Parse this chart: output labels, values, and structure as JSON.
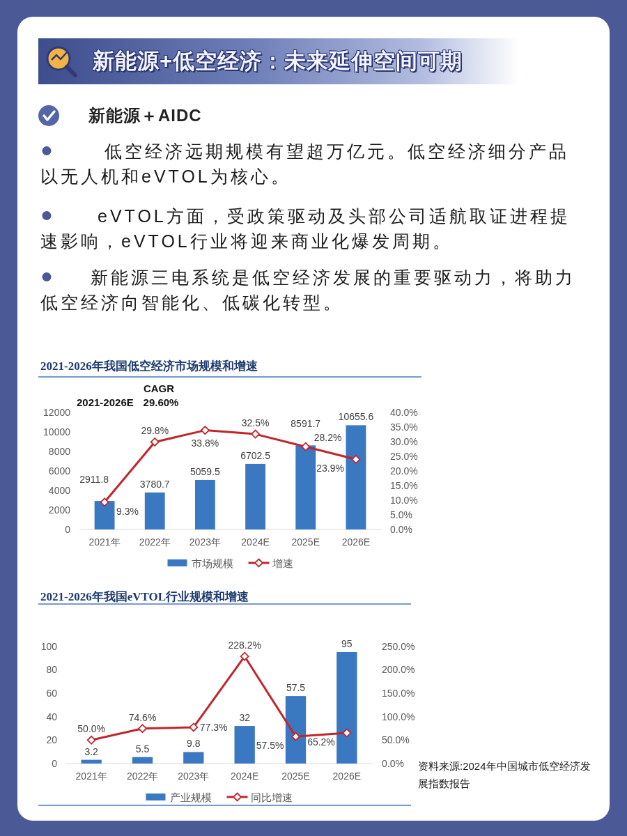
{
  "chart_data": [
    {
      "type": "other",
      "title": "新能源+低空经济：未来延伸空间可期",
      "subtitle": "新能源＋AIDC",
      "annotations": [
        "低空经济远期规模有望超万亿元。低空经济细分产品以无人机和eVTOL为核心。",
        "eVTOL方面，受政策驱动及头部公司适航取证进程提速影响，eVTOL行业将迎来商业化爆发周期。",
        "新能源三电系统是低空经济发展的重要驱动力，将助力低空经济向智能化、低碳化转型。"
      ]
    },
    {
      "type": "bar",
      "title": "2021-2026年我国低空经济市场规模和增速",
      "categories": [
        "2021年",
        "2022年",
        "2023年",
        "2024E",
        "2025E",
        "2026E"
      ],
      "series": [
        {
          "name": "市场规模",
          "type": "bar",
          "color": "#3b78c2",
          "values": [
            2911.8,
            3780.7,
            5059.5,
            6702.5,
            8591.7,
            10655.6
          ],
          "value_labels": [
            "2911.8",
            "3780.7",
            "5059.5",
            "6702.5",
            "8591.7",
            "10655.6"
          ]
        },
        {
          "name": "增速",
          "type": "line",
          "axis": "y2",
          "color": "#c0262c",
          "values": [
            9.3,
            29.8,
            33.8,
            32.5,
            28.2,
            23.9
          ],
          "value_labels": [
            "9.3%",
            "29.8%",
            "33.8%",
            "32.5%",
            "28.2%",
            "23.9%"
          ]
        }
      ],
      "ylim": [
        0,
        12000
      ],
      "yticks": [
        0,
        2000,
        4000,
        6000,
        8000,
        10000,
        12000
      ],
      "y2lim": [
        0,
        40
      ],
      "y2ticks": [
        {
          "value": 0,
          "label": "0.0%"
        },
        {
          "value": 5,
          "label": "5.0%"
        },
        {
          "value": 10,
          "label": "10.0%"
        },
        {
          "value": 15,
          "label": "15.0%"
        },
        {
          "value": 20,
          "label": "20.0%"
        },
        {
          "value": 25,
          "label": "25.0%"
        },
        {
          "value": 30,
          "label": "30.0%"
        },
        {
          "value": 35,
          "label": "35.0%"
        },
        {
          "value": 40,
          "label": "40.0%"
        }
      ],
      "marker": "diamond",
      "legend": "bottom",
      "annotations": [
        "CAGR",
        "2021-2026E",
        "29.60%"
      ]
    },
    {
      "type": "bar",
      "title": "2021-2026年我国eVTOL行业规模和增速",
      "categories": [
        "2021年",
        "2022年",
        "2023年",
        "2024E",
        "2025E",
        "2026E"
      ],
      "series": [
        {
          "name": "产业规模",
          "type": "bar",
          "color": "#3b78c2",
          "values": [
            3.2,
            5.5,
            9.8,
            32,
            57.5,
            95
          ],
          "value_labels": [
            "3.2",
            "5.5",
            "9.8",
            "32",
            "57.5",
            "95"
          ]
        },
        {
          "name": "同比增速",
          "type": "line",
          "axis": "y2",
          "color": "#c0262c",
          "values": [
            50.0,
            74.6,
            77.3,
            228.2,
            57.5,
            65.2
          ],
          "value_labels": [
            "50.0%",
            "74.6%",
            "77.3%",
            "228.2%",
            "57.5%",
            "65.2%"
          ]
        }
      ],
      "ylim": [
        0,
        100
      ],
      "yticks": [
        0,
        20,
        40,
        60,
        80,
        100
      ],
      "y2lim": [
        0,
        250
      ],
      "y2ticks": [
        {
          "value": 0,
          "label": "0.0%"
        },
        {
          "value": 50,
          "label": "50.0%"
        },
        {
          "value": 100,
          "label": "100.0%"
        },
        {
          "value": 150,
          "label": "150.0%"
        },
        {
          "value": 200,
          "label": "200.0%"
        },
        {
          "value": 250,
          "label": "250.0%"
        }
      ],
      "marker": "diamond",
      "legend": "bottom",
      "annotations": [
        "资料来源:2024年中国城市低空经济发展指数报告"
      ]
    }
  ]
}
